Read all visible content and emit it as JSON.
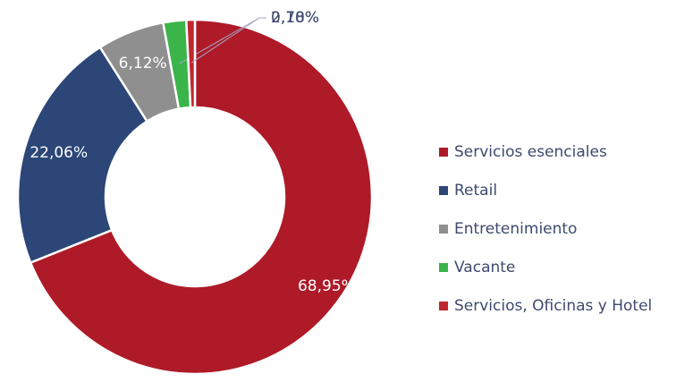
{
  "chart_data": {
    "type": "doughnut",
    "categories": [
      "Servicios esenciales",
      "Retail",
      "Entretenimiento",
      "Vacante",
      "Servicios, Oficinas y Hotel"
    ],
    "values": [
      68.95,
      22.06,
      6.12,
      2.1,
      0.78
    ],
    "value_labels": [
      "68,95%",
      "22,06%",
      "6,12%",
      "2,10%",
      "0,78%"
    ],
    "colors": [
      "#ae1a28",
      "#2b4677",
      "#8f8f8f",
      "#3bb44a",
      "#c1272d"
    ],
    "legend": "right"
  }
}
